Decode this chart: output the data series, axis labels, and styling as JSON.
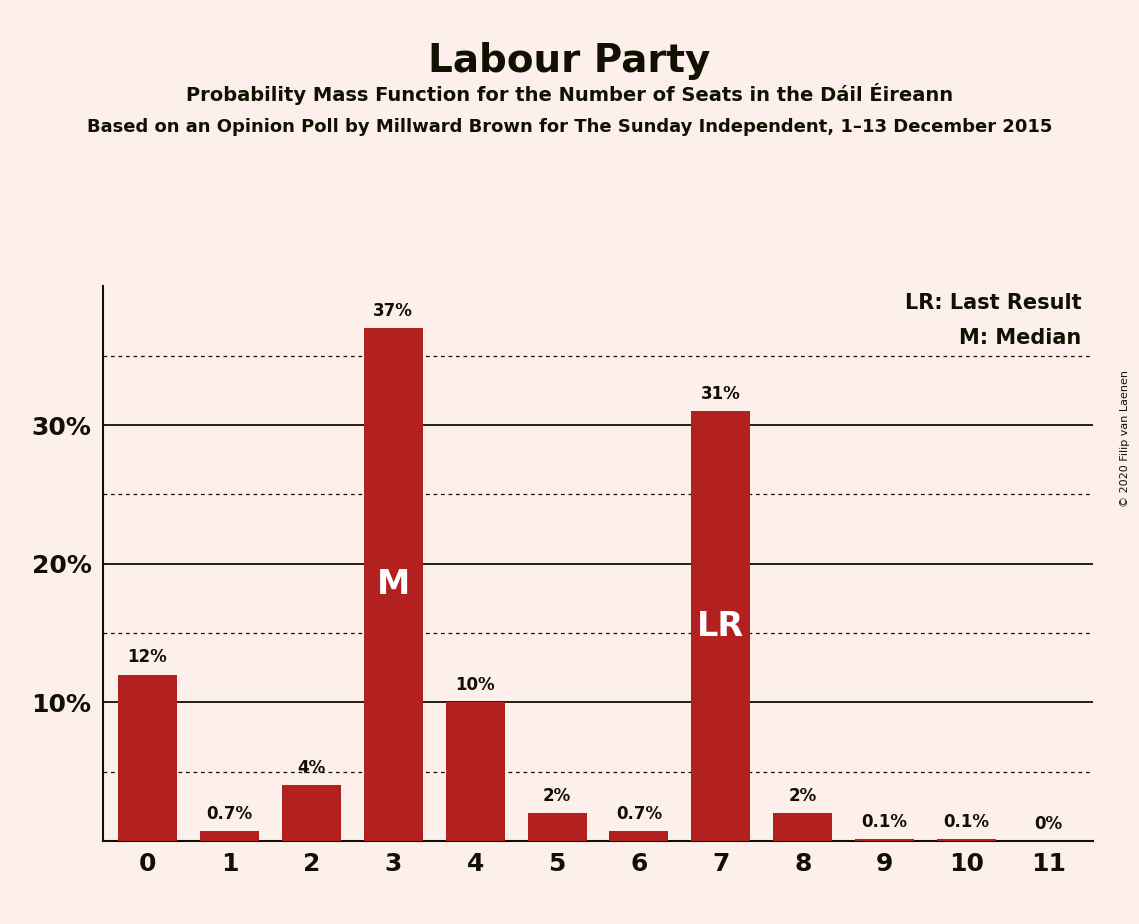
{
  "title": "Labour Party",
  "subtitle": "Probability Mass Function for the Number of Seats in the Dáil Éireann",
  "subtitle2": "Based on an Opinion Poll by Millward Brown for The Sunday Independent, 1–13 December 2015",
  "copyright": "© 2020 Filip van Laenen",
  "categories": [
    0,
    1,
    2,
    3,
    4,
    5,
    6,
    7,
    8,
    9,
    10,
    11
  ],
  "values": [
    12.0,
    0.7,
    4.0,
    37.0,
    10.0,
    2.0,
    0.7,
    31.0,
    2.0,
    0.1,
    0.1,
    0.0
  ],
  "bar_color": "#b22020",
  "background_color": "#fdf0ec",
  "text_color": "#111100",
  "bar_labels": [
    "12%",
    "0.7%",
    "4%",
    "37%",
    "10%",
    "2%",
    "0.7%",
    "31%",
    "2%",
    "0.1%",
    "0.1%",
    "0%"
  ],
  "median_bar": 3,
  "lr_bar": 7,
  "median_label": "M",
  "lr_label": "LR",
  "legend_lr": "LR: Last Result",
  "legend_m": "M: Median",
  "solid_lines": [
    10,
    20,
    30
  ],
  "dotted_lines": [
    5,
    15,
    25,
    35
  ],
  "ylim": [
    0,
    40
  ],
  "bar_width": 0.72
}
